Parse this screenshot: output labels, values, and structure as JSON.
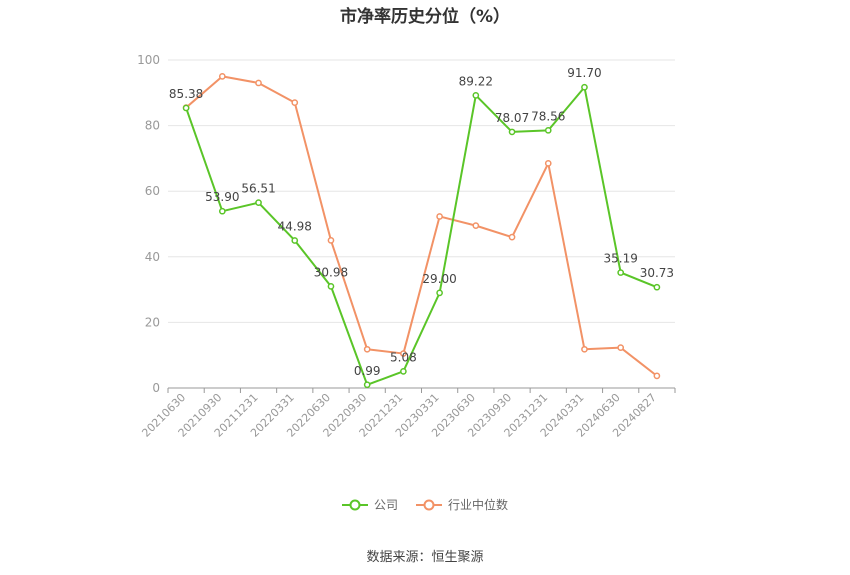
{
  "chart_data": {
    "type": "line",
    "title": "市净率历史分位（%）",
    "categories": [
      "20210630",
      "20210930",
      "20211231",
      "20220331",
      "20220630",
      "20220930",
      "20221231",
      "20230331",
      "20230630",
      "20230930",
      "20231231",
      "20240331",
      "20240630",
      "20240827"
    ],
    "ylim": [
      0,
      100
    ],
    "yticks": [
      0,
      20,
      40,
      60,
      80,
      100
    ],
    "grid": true,
    "legend_position": "bottom",
    "series": [
      {
        "name": "公司",
        "color": "#5ac528",
        "values": [
          85.38,
          53.9,
          56.51,
          44.98,
          30.98,
          0.99,
          5.08,
          29.0,
          89.22,
          78.07,
          78.56,
          91.7,
          35.19,
          30.73
        ],
        "labels": [
          "85.38",
          "53.90",
          "56.51",
          "44.98",
          "30.98",
          "0.99",
          "5.08",
          "29.00",
          "89.22",
          "78.07",
          "78.56",
          "91.70",
          "35.19",
          "30.73"
        ]
      },
      {
        "name": "行业中位数",
        "color": "#f29266",
        "values": [
          85.5,
          95.0,
          93.0,
          87.0,
          45.0,
          11.8,
          10.5,
          52.3,
          49.5,
          46.0,
          68.5,
          11.8,
          12.3,
          3.7
        ]
      }
    ],
    "source": "数据来源：恒生聚源"
  }
}
